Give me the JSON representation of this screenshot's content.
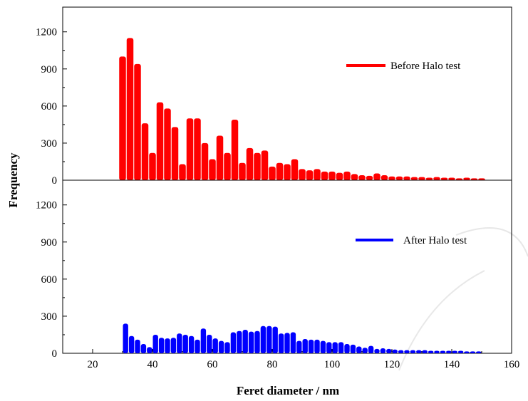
{
  "chart_data": {
    "type": "bar",
    "xlabel": "Feret diameter / nm",
    "ylabel": "Frequency",
    "xlim": [
      10,
      160
    ],
    "x_ticks": [
      20,
      40,
      60,
      80,
      100,
      120,
      140,
      160
    ],
    "panels": [
      {
        "position": "top",
        "ylim": [
          0,
          1400
        ],
        "y_ticks": [
          0,
          300,
          600,
          900,
          1200
        ],
        "legend_position": "top-right",
        "series": [
          {
            "name": "Before Halo test",
            "color": "#ff0000",
            "x": [
              30,
              32.5,
              35,
              37.5,
              40,
              42.5,
              45,
              47.5,
              50,
              52.5,
              55,
              57.5,
              60,
              62.5,
              65,
              67.5,
              70,
              72.5,
              75,
              77.5,
              80,
              82.5,
              85,
              87.5,
              90,
              92.5,
              95,
              97.5,
              100,
              102.5,
              105,
              107.5,
              110,
              112.5,
              115,
              117.5,
              120,
              122.5,
              125,
              127.5,
              130,
              132.5,
              135,
              137.5,
              140,
              142.5,
              145,
              147.5,
              150
            ],
            "values": [
              1000,
              1150,
              940,
              460,
              220,
              630,
              580,
              430,
              130,
              500,
              500,
              300,
              170,
              360,
              220,
              490,
              140,
              260,
              220,
              240,
              110,
              140,
              130,
              170,
              90,
              80,
              90,
              70,
              70,
              60,
              70,
              50,
              40,
              35,
              55,
              40,
              30,
              30,
              30,
              25,
              25,
              20,
              25,
              20,
              20,
              15,
              20,
              15,
              15
            ]
          }
        ]
      },
      {
        "position": "bottom",
        "ylim": [
          0,
          1400
        ],
        "y_ticks": [
          0,
          300,
          600,
          900,
          1200
        ],
        "legend_position": "top-right",
        "series": [
          {
            "name": "After Halo test",
            "color": "#0000ff",
            "x": [
              31,
              33,
              35,
              37,
              39,
              41,
              43,
              45,
              47,
              49,
              51,
              53,
              55,
              57,
              59,
              61,
              63,
              65,
              67,
              69,
              71,
              73,
              75,
              77,
              79,
              81,
              83,
              85,
              87,
              89,
              91,
              93,
              95,
              97,
              99,
              101,
              103,
              105,
              107,
              109,
              111,
              113,
              115,
              117,
              119,
              121,
              123,
              125,
              127,
              129,
              131,
              133,
              135,
              137,
              139,
              141,
              143,
              145,
              147,
              149
            ],
            "values": [
              240,
              140,
              110,
              75,
              50,
              150,
              125,
              120,
              125,
              160,
              150,
              140,
              110,
              200,
              150,
              120,
              100,
              90,
              170,
              180,
              190,
              175,
              180,
              220,
              220,
              215,
              160,
              165,
              170,
              100,
              115,
              110,
              110,
              100,
              90,
              90,
              90,
              75,
              70,
              55,
              45,
              60,
              35,
              40,
              35,
              30,
              25,
              25,
              25,
              25,
              25,
              20,
              20,
              20,
              20,
              20,
              20,
              15,
              15,
              15
            ]
          }
        ]
      }
    ]
  }
}
